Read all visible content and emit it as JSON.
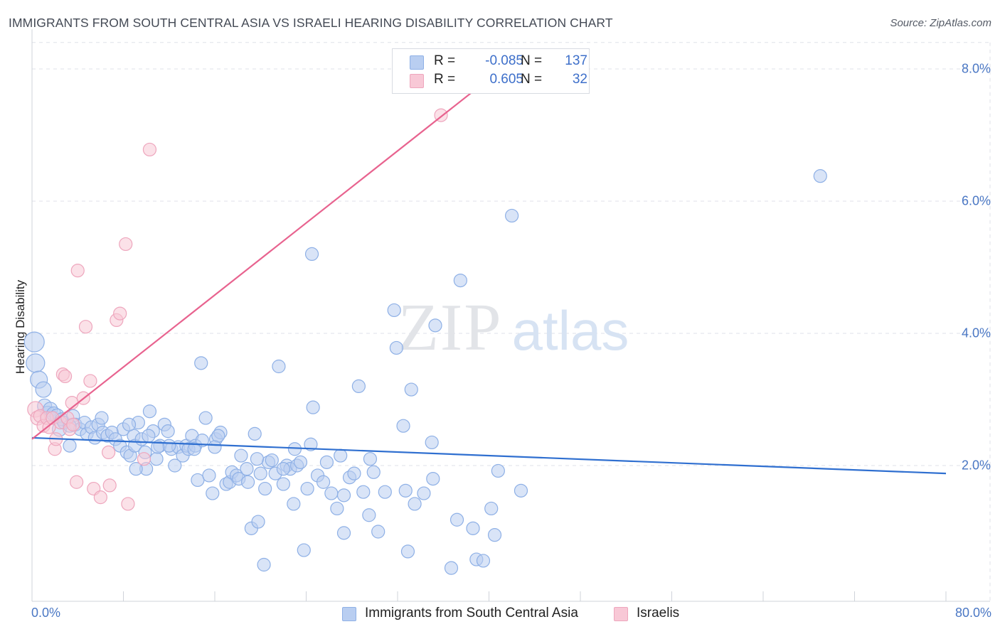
{
  "header": {
    "title": "IMMIGRANTS FROM SOUTH CENTRAL ASIA VS ISRAELI HEARING DISABILITY CORRELATION CHART",
    "source": "Source: ZipAtlas.com"
  },
  "watermark": {
    "zip": "ZIP",
    "atlas": "atlas"
  },
  "legend_top": {
    "rows": [
      {
        "r_label": "R =",
        "r_value": "-0.085",
        "n_label": "N =",
        "n_value": "137"
      },
      {
        "r_label": "R =",
        "r_value": "0.605",
        "n_label": "N =",
        "n_value": "32"
      }
    ]
  },
  "chart_data": {
    "type": "scatter",
    "title": "IMMIGRANTS FROM SOUTH CENTRAL ASIA VS ISRAELI HEARING DISABILITY CORRELATION CHART",
    "xlabel": "",
    "ylabel": "Hearing Disability",
    "xlim": [
      0,
      80
    ],
    "ylim": [
      0,
      8.6
    ],
    "x_tick_labels": [
      "0.0%",
      "80.0%"
    ],
    "y_ticks": [
      2,
      4,
      6,
      8
    ],
    "y_tick_labels": [
      "2.0%",
      "4.0%",
      "6.0%",
      "8.0%"
    ],
    "grid": true,
    "legend_position": "bottom-center",
    "series": [
      {
        "name": "Immigrants from South Central Asia",
        "color": "#89aee6",
        "stroke": "#5b8cd8",
        "r": -0.085,
        "n": 137,
        "trend": {
          "x": [
            0,
            80
          ],
          "y": [
            2.42,
            1.88
          ],
          "color": "#2f6fd0"
        },
        "points": [
          [
            0.2,
            3.87,
            14
          ],
          [
            0.3,
            3.55,
            13
          ],
          [
            0.6,
            3.3,
            12
          ],
          [
            1.0,
            3.15,
            11
          ],
          [
            1.1,
            2.9,
            10
          ],
          [
            1.4,
            2.78,
            11
          ],
          [
            1.6,
            2.85,
            10
          ],
          [
            1.9,
            2.78,
            10
          ],
          [
            2.2,
            2.75,
            10
          ],
          [
            2.4,
            2.55,
            10
          ],
          [
            2.6,
            2.7,
            9
          ],
          [
            2.8,
            2.65,
            9
          ],
          [
            3.3,
            2.3,
            9
          ],
          [
            3.6,
            2.75,
            9
          ],
          [
            3.8,
            2.62,
            9
          ],
          [
            4.2,
            2.55,
            9
          ],
          [
            4.6,
            2.65,
            9
          ],
          [
            4.8,
            2.48,
            9
          ],
          [
            5.2,
            2.58,
            9
          ],
          [
            5.5,
            2.42,
            9
          ],
          [
            5.8,
            2.62,
            9
          ],
          [
            6.2,
            2.5,
            9
          ],
          [
            6.6,
            2.45,
            9
          ],
          [
            7.0,
            2.5,
            9
          ],
          [
            7.3,
            2.4,
            9
          ],
          [
            7.7,
            2.3,
            9
          ],
          [
            8.0,
            2.55,
            9
          ],
          [
            8.3,
            2.2,
            9
          ],
          [
            8.6,
            2.15,
            9
          ],
          [
            8.9,
            2.45,
            9
          ],
          [
            9.0,
            2.3,
            9
          ],
          [
            9.3,
            2.65,
            9
          ],
          [
            9.6,
            2.4,
            9
          ],
          [
            9.9,
            2.2,
            9
          ],
          [
            10.0,
            1.95,
            9
          ],
          [
            10.3,
            2.82,
            9
          ],
          [
            10.6,
            2.52,
            9
          ],
          [
            10.9,
            2.1,
            9
          ],
          [
            11.2,
            2.3,
            9
          ],
          [
            11.6,
            2.62,
            9
          ],
          [
            11.9,
            2.52,
            9
          ],
          [
            12.2,
            2.25,
            9
          ],
          [
            12.5,
            2.0,
            9
          ],
          [
            12.8,
            2.28,
            9
          ],
          [
            13.2,
            2.15,
            9
          ],
          [
            13.5,
            2.3,
            9
          ],
          [
            13.7,
            2.25,
            9
          ],
          [
            14.0,
            2.45,
            9
          ],
          [
            14.3,
            2.3,
            9
          ],
          [
            14.5,
            1.78,
            9
          ],
          [
            14.8,
            3.55,
            9
          ],
          [
            14.9,
            2.38,
            9
          ],
          [
            15.2,
            2.72,
            9
          ],
          [
            15.5,
            1.85,
            9
          ],
          [
            15.8,
            1.58,
            9
          ],
          [
            16.1,
            2.4,
            9
          ],
          [
            16.5,
            2.5,
            9
          ],
          [
            17.0,
            1.72,
            9
          ],
          [
            17.3,
            1.75,
            9
          ],
          [
            17.5,
            1.9,
            9
          ],
          [
            17.9,
            1.85,
            9
          ],
          [
            18.1,
            1.8,
            9
          ],
          [
            18.3,
            2.15,
            9
          ],
          [
            18.8,
            1.95,
            9
          ],
          [
            19.2,
            1.05,
            9
          ],
          [
            19.5,
            2.48,
            9
          ],
          [
            19.8,
            1.15,
            9
          ],
          [
            20.0,
            1.88,
            9
          ],
          [
            20.4,
            1.65,
            9
          ],
          [
            20.7,
            2.05,
            9
          ],
          [
            21.0,
            2.08,
            9
          ],
          [
            21.3,
            1.88,
            9
          ],
          [
            21.6,
            3.5,
            9
          ],
          [
            22.0,
            1.72,
            9
          ],
          [
            22.3,
            2.0,
            9
          ],
          [
            22.6,
            1.95,
            9
          ],
          [
            22.9,
            1.42,
            9
          ],
          [
            23.2,
            2.0,
            9
          ],
          [
            23.5,
            2.05,
            9
          ],
          [
            23.8,
            0.72,
            9
          ],
          [
            24.1,
            1.65,
            9
          ],
          [
            24.4,
            2.32,
            9
          ],
          [
            24.6,
            2.88,
            9
          ],
          [
            25.0,
            1.85,
            9
          ],
          [
            25.5,
            1.75,
            9
          ],
          [
            26.2,
            1.58,
            9
          ],
          [
            26.7,
            1.35,
            9
          ],
          [
            27.0,
            2.15,
            9
          ],
          [
            27.3,
            0.98,
            9
          ],
          [
            27.8,
            1.82,
            9
          ],
          [
            28.2,
            1.88,
            9
          ],
          [
            28.6,
            3.2,
            9
          ],
          [
            29.0,
            1.6,
            9
          ],
          [
            29.5,
            1.25,
            9
          ],
          [
            29.9,
            1.9,
            9
          ],
          [
            30.3,
            1.0,
            9
          ],
          [
            31.7,
            4.35,
            9
          ],
          [
            31.9,
            3.78,
            9
          ],
          [
            32.5,
            2.6,
            9
          ],
          [
            32.7,
            1.62,
            9
          ],
          [
            32.9,
            0.7,
            9
          ],
          [
            33.5,
            1.42,
            9
          ],
          [
            34.3,
            1.58,
            9
          ],
          [
            35.1,
            1.8,
            9
          ],
          [
            35.3,
            4.12,
            9
          ],
          [
            36.7,
            0.45,
            9
          ],
          [
            37.2,
            1.18,
            9
          ],
          [
            38.6,
            1.05,
            9
          ],
          [
            38.9,
            0.58,
            9
          ],
          [
            39.5,
            0.56,
            9
          ],
          [
            40.2,
            1.35,
            9
          ],
          [
            40.5,
            0.95,
            9
          ],
          [
            40.8,
            1.92,
            9
          ],
          [
            42.8,
            1.62,
            9
          ],
          [
            35.0,
            2.35,
            9
          ],
          [
            33.2,
            3.15,
            9
          ],
          [
            37.5,
            4.8,
            9
          ],
          [
            42.0,
            5.78,
            9
          ],
          [
            69.0,
            6.38,
            9
          ],
          [
            24.5,
            5.2,
            9
          ],
          [
            20.3,
            0.5,
            9
          ],
          [
            16.3,
            2.45,
            9
          ],
          [
            12.0,
            2.3,
            9
          ],
          [
            6.1,
            2.72,
            9
          ],
          [
            9.1,
            1.95,
            9
          ],
          [
            27.3,
            1.55,
            9
          ],
          [
            30.9,
            1.6,
            9
          ],
          [
            19.7,
            2.1,
            9
          ],
          [
            14.2,
            2.25,
            9
          ],
          [
            11.0,
            2.28,
            9
          ],
          [
            8.5,
            2.62,
            9
          ],
          [
            16.0,
            2.28,
            9
          ],
          [
            25.8,
            2.05,
            9
          ],
          [
            23.0,
            2.25,
            9
          ],
          [
            18.9,
            1.75,
            9
          ],
          [
            3.3,
            2.6,
            9
          ],
          [
            22.0,
            1.95,
            9
          ],
          [
            10.2,
            2.45,
            9
          ],
          [
            29.6,
            2.1,
            9
          ]
        ]
      },
      {
        "name": "Israelis",
        "color": "#f3b8c9",
        "stroke": "#e58aa5",
        "r": 0.605,
        "n": 32,
        "trend": {
          "x": [
            0,
            40
          ],
          "y": [
            2.4,
            7.85
          ],
          "color": "#e8638f"
        },
        "points": [
          [
            0.3,
            2.85,
            11
          ],
          [
            0.5,
            2.72,
            10
          ],
          [
            0.7,
            2.75,
            9
          ],
          [
            1.0,
            2.6,
            9
          ],
          [
            1.3,
            2.72,
            9
          ],
          [
            1.5,
            2.58,
            9
          ],
          [
            1.8,
            2.72,
            9
          ],
          [
            2.0,
            2.25,
            9
          ],
          [
            2.1,
            2.4,
            9
          ],
          [
            2.5,
            2.65,
            9
          ],
          [
            2.7,
            3.38,
            9
          ],
          [
            2.9,
            3.35,
            9
          ],
          [
            3.1,
            2.72,
            9
          ],
          [
            3.3,
            2.55,
            9
          ],
          [
            3.5,
            2.95,
            9
          ],
          [
            3.6,
            2.62,
            9
          ],
          [
            3.9,
            1.75,
            9
          ],
          [
            4.0,
            4.95,
            9
          ],
          [
            4.5,
            3.02,
            9
          ],
          [
            4.7,
            4.1,
            9
          ],
          [
            5.1,
            3.28,
            9
          ],
          [
            5.4,
            1.65,
            9
          ],
          [
            6.0,
            1.52,
            9
          ],
          [
            6.7,
            2.2,
            9
          ],
          [
            6.8,
            1.7,
            9
          ],
          [
            7.4,
            4.2,
            9
          ],
          [
            7.7,
            4.3,
            9
          ],
          [
            8.2,
            5.35,
            9
          ],
          [
            8.4,
            1.42,
            9
          ],
          [
            9.8,
            2.1,
            9
          ],
          [
            10.3,
            6.78,
            9
          ],
          [
            35.8,
            7.3,
            9
          ]
        ]
      }
    ]
  },
  "legend_bottom": {
    "items": [
      {
        "label": "Immigrants from South Central Asia"
      },
      {
        "label": "Israelis"
      }
    ]
  },
  "colors": {
    "blue_fill": "#b9cef1",
    "blue_stroke": "#8eb0e6",
    "pink_fill": "#f8c8d6",
    "pink_stroke": "#eea6bd",
    "tick_text": "#4a77c4",
    "grid": "#dfe2e8"
  }
}
